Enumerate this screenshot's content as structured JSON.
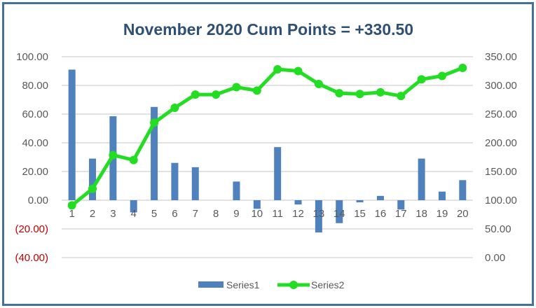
{
  "chart_data": {
    "type": "bar+line",
    "title": "November 2020 Cum Points = +330.50",
    "categories": [
      "1",
      "2",
      "3",
      "4",
      "5",
      "6",
      "7",
      "8",
      "9",
      "10",
      "11",
      "12",
      "13",
      "14",
      "15",
      "16",
      "17",
      "18",
      "19",
      "20"
    ],
    "series": [
      {
        "name": "Series1",
        "type": "bar",
        "axis": "left",
        "color": "#4F81BD",
        "values": [
          91,
          29,
          58.5,
          -8.5,
          65,
          26,
          23,
          0,
          13,
          -6,
          37,
          -3,
          -22.5,
          -16,
          -1.5,
          3,
          -6.5,
          29,
          6,
          14
        ]
      },
      {
        "name": "Series2",
        "type": "line",
        "axis": "right",
        "color": "#22DD22",
        "values": [
          91,
          120,
          178.5,
          170,
          235,
          261,
          284,
          284,
          297,
          291,
          328,
          325,
          302.5,
          286.5,
          285,
          288,
          281.5,
          310.5,
          316.5,
          330.5
        ]
      }
    ],
    "left_axis": {
      "range": [
        -40,
        100
      ],
      "ticks": [
        "100.00",
        "80.00",
        "60.00",
        "40.00",
        "20.00",
        "0.00",
        "(20.00)",
        "(40.00)"
      ],
      "negative_color": "#C00000"
    },
    "right_axis": {
      "range": [
        0,
        350
      ],
      "ticks": [
        "350.00",
        "300.00",
        "250.00",
        "200.00",
        "150.00",
        "100.00",
        "50.00",
        "0.00"
      ]
    },
    "grid": true,
    "legend": "bottom",
    "title_color": "#2F4F73",
    "frame_color": "#41719C"
  }
}
